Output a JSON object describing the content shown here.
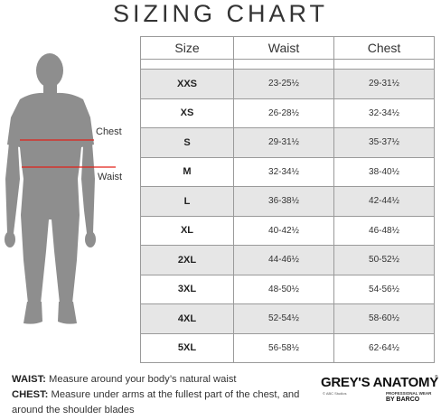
{
  "title": "SIZING CHART",
  "figure": {
    "chest_label": "Chest",
    "waist_label": "Waist",
    "accent_color": "#e2231a"
  },
  "table": {
    "headers": [
      "Size",
      "Waist",
      "Chest"
    ],
    "rows": [
      {
        "size": "XXS",
        "waist": "23-25½",
        "chest": "29-31½"
      },
      {
        "size": "XS",
        "waist": "26-28½",
        "chest": "32-34½"
      },
      {
        "size": "S",
        "waist": "29-31½",
        "chest": "35-37½"
      },
      {
        "size": "M",
        "waist": "32-34½",
        "chest": "38-40½"
      },
      {
        "size": "L",
        "waist": "36-38½",
        "chest": "42-44½"
      },
      {
        "size": "XL",
        "waist": "40-42½",
        "chest": "46-48½"
      },
      {
        "size": "2XL",
        "waist": "44-46½",
        "chest": "50-52½"
      },
      {
        "size": "3XL",
        "waist": "48-50½",
        "chest": "54-56½"
      },
      {
        "size": "4XL",
        "waist": "52-54½",
        "chest": "58-60½"
      },
      {
        "size": "5XL",
        "waist": "56-58½",
        "chest": "62-64½"
      }
    ]
  },
  "notes": {
    "waist_key": "WAIST:",
    "waist_text": " Measure around your body’s natural waist",
    "chest_key": "CHEST:",
    "chest_text": " Measure under arms at the fullest part of the chest, and around the shoulder blades"
  },
  "brand": {
    "name": "GREY'S ANATOMY",
    "reg": "®",
    "studio": "© ABC Studios",
    "tagline": "PROFESSIONAL WEAR",
    "maker": "BY BARCO"
  }
}
